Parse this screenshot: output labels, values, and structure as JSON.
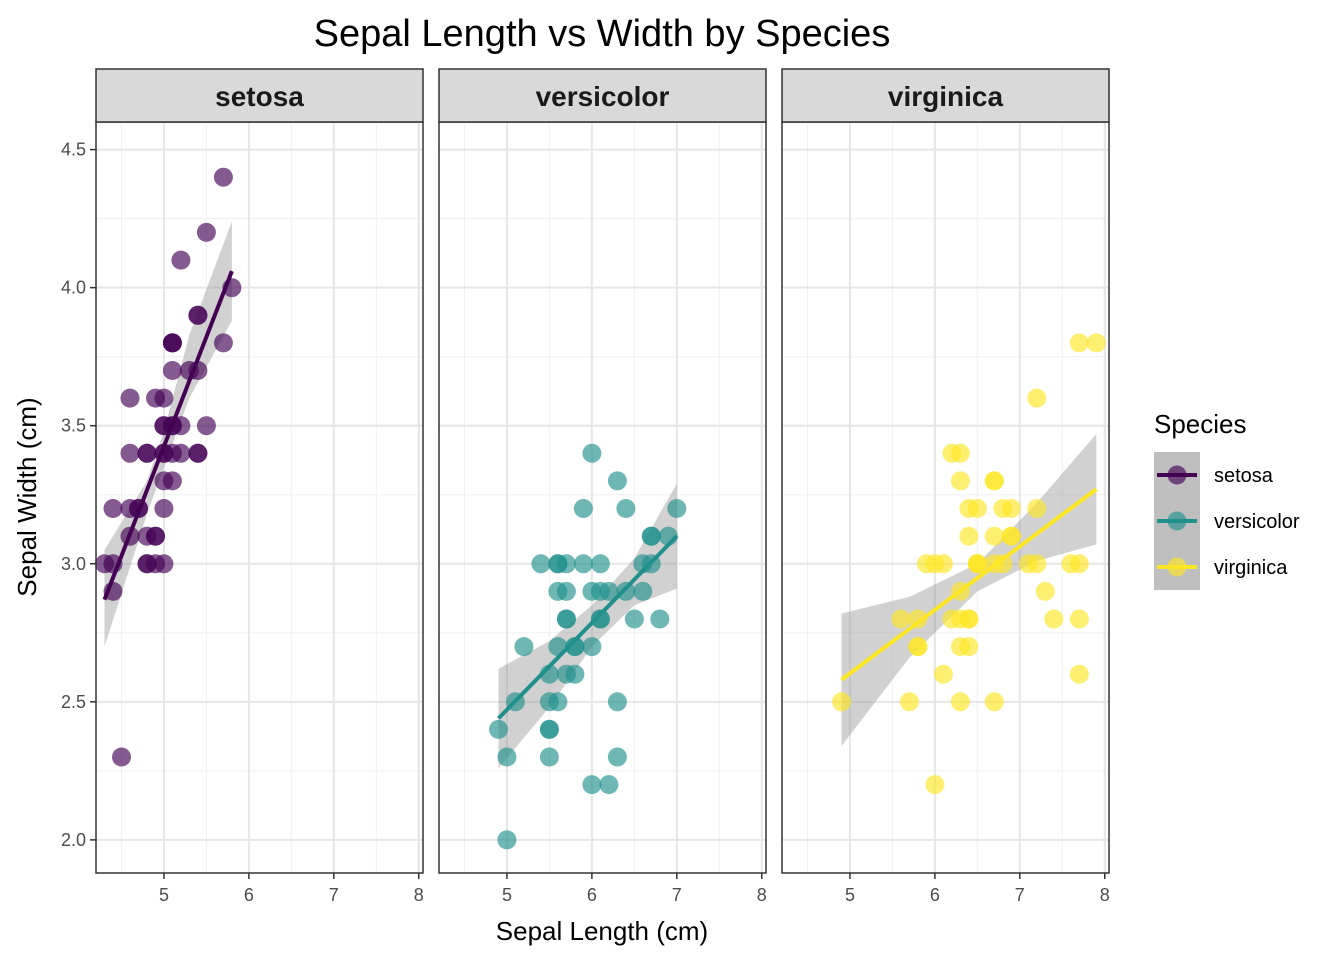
{
  "chart_data": {
    "type": "scatter",
    "title": "Sepal Length vs Width by Species",
    "xlabel": "Sepal Length (cm)",
    "ylabel": "Sepal Width (cm)",
    "xlim": [
      4.2,
      8.05
    ],
    "ylim": [
      1.88,
      4.6
    ],
    "x_ticks": [
      "5",
      "6",
      "7",
      "8"
    ],
    "x_tick_values": [
      5,
      6,
      7,
      8
    ],
    "y_ticks": [
      "2.0",
      "2.5",
      "3.0",
      "3.5",
      "4.0",
      "4.5"
    ],
    "y_tick_values": [
      2.0,
      2.5,
      3.0,
      3.5,
      4.0,
      4.5
    ],
    "grid": true,
    "facets": "species",
    "legend": {
      "title": "Species",
      "position": "right",
      "entries": [
        "setosa",
        "versicolor",
        "virginica"
      ]
    },
    "series": [
      {
        "name": "setosa",
        "color": "#440154",
        "fit": {
          "x": [
            4.3,
            5.8
          ],
          "y": [
            2.87,
            4.06
          ]
        },
        "band": {
          "x": [
            4.3,
            4.8,
            5.0,
            5.3,
            5.8
          ],
          "upper": [
            3.05,
            3.3,
            3.48,
            3.83,
            4.24
          ],
          "lower": [
            2.7,
            3.18,
            3.35,
            3.6,
            3.88
          ]
        },
        "points": [
          [
            5.1,
            3.5
          ],
          [
            4.9,
            3.0
          ],
          [
            4.7,
            3.2
          ],
          [
            4.6,
            3.1
          ],
          [
            5.0,
            3.6
          ],
          [
            5.4,
            3.9
          ],
          [
            4.6,
            3.4
          ],
          [
            5.0,
            3.4
          ],
          [
            4.4,
            2.9
          ],
          [
            4.9,
            3.1
          ],
          [
            5.4,
            3.7
          ],
          [
            4.8,
            3.4
          ],
          [
            4.8,
            3.0
          ],
          [
            4.3,
            3.0
          ],
          [
            5.8,
            4.0
          ],
          [
            5.7,
            4.4
          ],
          [
            5.4,
            3.9
          ],
          [
            5.1,
            3.5
          ],
          [
            5.7,
            3.8
          ],
          [
            5.1,
            3.8
          ],
          [
            5.4,
            3.4
          ],
          [
            5.1,
            3.7
          ],
          [
            4.6,
            3.6
          ],
          [
            5.1,
            3.3
          ],
          [
            4.8,
            3.4
          ],
          [
            5.0,
            3.0
          ],
          [
            5.0,
            3.4
          ],
          [
            5.2,
            3.5
          ],
          [
            5.2,
            3.4
          ],
          [
            4.7,
            3.2
          ],
          [
            4.8,
            3.1
          ],
          [
            5.4,
            3.4
          ],
          [
            5.2,
            4.1
          ],
          [
            5.5,
            4.2
          ],
          [
            4.9,
            3.1
          ],
          [
            5.0,
            3.2
          ],
          [
            5.5,
            3.5
          ],
          [
            4.9,
            3.6
          ],
          [
            4.4,
            3.0
          ],
          [
            5.1,
            3.4
          ],
          [
            5.0,
            3.5
          ],
          [
            4.5,
            2.3
          ],
          [
            4.4,
            3.2
          ],
          [
            5.0,
            3.5
          ],
          [
            5.1,
            3.8
          ],
          [
            4.8,
            3.0
          ],
          [
            5.1,
            3.8
          ],
          [
            4.6,
            3.2
          ],
          [
            5.3,
            3.7
          ],
          [
            5.0,
            3.3
          ]
        ]
      },
      {
        "name": "versicolor",
        "color": "#21908C",
        "fit": {
          "x": [
            4.9,
            7.0
          ],
          "y": [
            2.44,
            3.1
          ]
        },
        "band": {
          "x": [
            4.9,
            5.5,
            6.0,
            6.5,
            7.0
          ],
          "upper": [
            2.62,
            2.72,
            2.85,
            3.02,
            3.29
          ],
          "lower": [
            2.26,
            2.48,
            2.7,
            2.85,
            2.91
          ]
        },
        "points": [
          [
            7.0,
            3.2
          ],
          [
            6.4,
            3.2
          ],
          [
            6.9,
            3.1
          ],
          [
            5.5,
            2.3
          ],
          [
            6.5,
            2.8
          ],
          [
            5.7,
            2.8
          ],
          [
            6.3,
            3.3
          ],
          [
            4.9,
            2.4
          ],
          [
            6.6,
            2.9
          ],
          [
            5.2,
            2.7
          ],
          [
            5.0,
            2.0
          ],
          [
            5.9,
            3.0
          ],
          [
            6.0,
            2.2
          ],
          [
            6.1,
            2.9
          ],
          [
            5.6,
            2.9
          ],
          [
            6.7,
            3.1
          ],
          [
            5.6,
            3.0
          ],
          [
            5.8,
            2.7
          ],
          [
            6.2,
            2.2
          ],
          [
            5.6,
            2.5
          ],
          [
            5.9,
            3.2
          ],
          [
            6.1,
            2.8
          ],
          [
            6.3,
            2.5
          ],
          [
            6.1,
            2.8
          ],
          [
            6.4,
            2.9
          ],
          [
            6.6,
            3.0
          ],
          [
            6.8,
            2.8
          ],
          [
            6.7,
            3.0
          ],
          [
            6.0,
            2.9
          ],
          [
            5.7,
            2.6
          ],
          [
            5.5,
            2.4
          ],
          [
            5.5,
            2.4
          ],
          [
            5.8,
            2.7
          ],
          [
            6.0,
            2.7
          ],
          [
            5.4,
            3.0
          ],
          [
            6.0,
            3.4
          ],
          [
            6.7,
            3.1
          ],
          [
            6.3,
            2.3
          ],
          [
            5.6,
            3.0
          ],
          [
            5.5,
            2.5
          ],
          [
            5.5,
            2.6
          ],
          [
            6.1,
            3.0
          ],
          [
            5.8,
            2.6
          ],
          [
            5.0,
            2.3
          ],
          [
            5.6,
            2.7
          ],
          [
            5.7,
            3.0
          ],
          [
            5.7,
            2.9
          ],
          [
            6.2,
            2.9
          ],
          [
            5.1,
            2.5
          ],
          [
            5.7,
            2.8
          ]
        ]
      },
      {
        "name": "virginica",
        "color": "#FDE725",
        "fit": {
          "x": [
            4.9,
            7.9
          ],
          "y": [
            2.58,
            3.27
          ]
        },
        "band": {
          "x": [
            4.9,
            5.7,
            6.5,
            7.2,
            7.9
          ],
          "upper": [
            2.82,
            2.88,
            3.0,
            3.22,
            3.47
          ],
          "lower": [
            2.34,
            2.66,
            2.9,
            3.01,
            3.07
          ]
        },
        "points": [
          [
            6.3,
            3.3
          ],
          [
            5.8,
            2.7
          ],
          [
            7.1,
            3.0
          ],
          [
            6.3,
            2.9
          ],
          [
            6.5,
            3.0
          ],
          [
            7.6,
            3.0
          ],
          [
            4.9,
            2.5
          ],
          [
            7.3,
            2.9
          ],
          [
            6.7,
            2.5
          ],
          [
            7.2,
            3.6
          ],
          [
            6.5,
            3.2
          ],
          [
            6.4,
            2.7
          ],
          [
            6.8,
            3.0
          ],
          [
            5.7,
            2.5
          ],
          [
            5.8,
            2.8
          ],
          [
            6.4,
            3.2
          ],
          [
            6.5,
            3.0
          ],
          [
            7.7,
            3.8
          ],
          [
            7.7,
            2.6
          ],
          [
            6.0,
            2.2
          ],
          [
            6.9,
            3.2
          ],
          [
            5.6,
            2.8
          ],
          [
            7.7,
            2.8
          ],
          [
            6.3,
            2.7
          ],
          [
            6.7,
            3.3
          ],
          [
            7.2,
            3.2
          ],
          [
            6.2,
            2.8
          ],
          [
            6.1,
            3.0
          ],
          [
            6.4,
            2.8
          ],
          [
            7.2,
            3.0
          ],
          [
            7.4,
            2.8
          ],
          [
            7.9,
            3.8
          ],
          [
            6.4,
            2.8
          ],
          [
            6.3,
            2.8
          ],
          [
            6.1,
            2.6
          ],
          [
            7.7,
            3.0
          ],
          [
            6.3,
            3.4
          ],
          [
            6.4,
            3.1
          ],
          [
            6.0,
            3.0
          ],
          [
            6.9,
            3.1
          ],
          [
            6.7,
            3.1
          ],
          [
            6.9,
            3.1
          ],
          [
            5.8,
            2.7
          ],
          [
            6.8,
            3.2
          ],
          [
            6.7,
            3.3
          ],
          [
            6.7,
            3.0
          ],
          [
            6.3,
            2.5
          ],
          [
            6.5,
            3.0
          ],
          [
            6.2,
            3.4
          ],
          [
            5.9,
            3.0
          ]
        ]
      }
    ]
  }
}
